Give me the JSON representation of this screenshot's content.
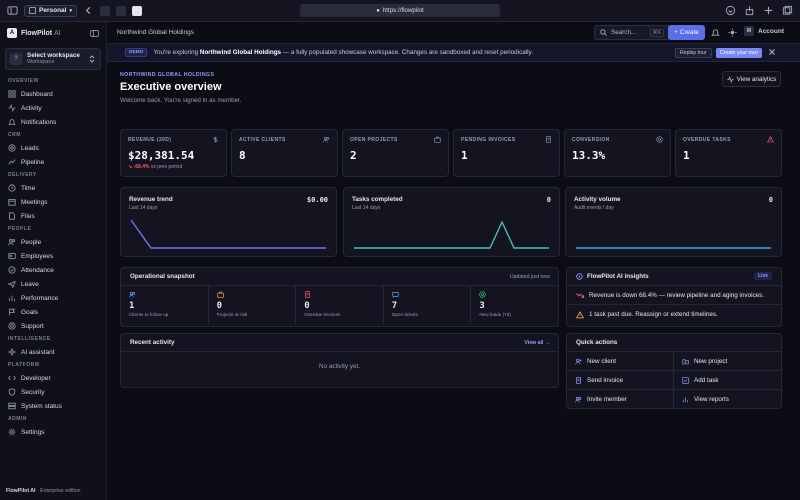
{
  "browser": {
    "profile": "Personal",
    "url": "https://flowpilot"
  },
  "brand": {
    "name": "FlowPilot",
    "suffix": "AI",
    "logo_letter": "A"
  },
  "workspace": {
    "title": "Select workspace",
    "subtitle": "Workspace",
    "initial": "?"
  },
  "sidebar": {
    "sections": [
      {
        "label": "OVERVIEW",
        "items": [
          {
            "label": "Dashboard",
            "icon": "grid-icon"
          },
          {
            "label": "Activity",
            "icon": "activity-icon"
          },
          {
            "label": "Notifications",
            "icon": "bell-icon"
          }
        ]
      },
      {
        "label": "CRM",
        "items": [
          {
            "label": "Leads",
            "icon": "target-icon"
          },
          {
            "label": "Pipeline",
            "icon": "pipeline-icon"
          }
        ]
      },
      {
        "label": "DELIVERY",
        "items": [
          {
            "label": "Time",
            "icon": "clock-icon"
          },
          {
            "label": "Meetings",
            "icon": "calendar-icon"
          },
          {
            "label": "Files",
            "icon": "file-icon"
          }
        ]
      },
      {
        "label": "PEOPLE",
        "items": [
          {
            "label": "People",
            "icon": "users-icon"
          },
          {
            "label": "Employees",
            "icon": "id-card-icon"
          },
          {
            "label": "Attendance",
            "icon": "check-circle-icon"
          },
          {
            "label": "Leave",
            "icon": "plane-icon"
          },
          {
            "label": "Performance",
            "icon": "chart-icon"
          },
          {
            "label": "Goals",
            "icon": "flag-icon"
          },
          {
            "label": "Support",
            "icon": "lifebuoy-icon"
          }
        ]
      },
      {
        "label": "INTELLIGENCE",
        "items": [
          {
            "label": "AI assistant",
            "icon": "sparkle-icon"
          }
        ]
      },
      {
        "label": "PLATFORM",
        "items": [
          {
            "label": "Developer",
            "icon": "code-icon"
          },
          {
            "label": "Security",
            "icon": "shield-icon"
          },
          {
            "label": "System status",
            "icon": "server-icon"
          }
        ]
      },
      {
        "label": "ADMIN",
        "items": [
          {
            "label": "Settings",
            "icon": "gear-icon"
          }
        ]
      }
    ],
    "footer_brand": "FlowPilot AI",
    "footer_edition": " · Enterprise edition"
  },
  "topbar": {
    "breadcrumb": "Northwind Global Holdings",
    "search_placeholder": "Search...",
    "search_shortcut": "⌘K",
    "create_label": "Create",
    "account_label": "Account",
    "account_initial": "M"
  },
  "demo_banner": {
    "badge": "DEMO",
    "text_before": "You're exploring ",
    "org": "Northwind Global Holdings",
    "text_after": " — a fully populated showcase workspace. Changes are sandboxed and reset periodically.",
    "replay_label": "Replay tour",
    "create_own_label": "Create your own"
  },
  "header": {
    "eyebrow": "NORTHWIND GLOBAL HOLDINGS",
    "title": "Executive overview",
    "subtitle": "Welcome back. You're signed in as member.",
    "view_analytics_label": "View analytics"
  },
  "kpis": [
    {
      "label": "REVENUE (30D)",
      "value": "$28,381.54",
      "delta": "-68.4%",
      "delta_note": " vs prev period",
      "icon": "dollar-icon"
    },
    {
      "label": "ACTIVE CLIENTS",
      "value": "8",
      "icon": "users-icon"
    },
    {
      "label": "OPEN PROJECTS",
      "value": "2",
      "icon": "briefcase-icon"
    },
    {
      "label": "PENDING INVOICES",
      "value": "1",
      "icon": "invoice-icon"
    },
    {
      "label": "CONVERSION",
      "value": "13.3%",
      "icon": "target-icon"
    },
    {
      "label": "OVERDUE TASKS",
      "value": "1",
      "icon": "warning-icon"
    }
  ],
  "minis": [
    {
      "title": "Revenue trend",
      "subtitle": "Last 14 days",
      "value": "$0.00",
      "color": "#7b6ff0"
    },
    {
      "title": "Tasks completed",
      "subtitle": "Last 14 days",
      "value": "0",
      "color": "#3fc3b0"
    },
    {
      "title": "Activity volume",
      "subtitle": "Audit events / day",
      "value": "0",
      "color": "#3aa3e8"
    }
  ],
  "snapshot": {
    "title": "Operational snapshot",
    "updated": "Updated just now",
    "cells": [
      {
        "value": "1",
        "caption": "Clients to follow up",
        "icon": "users-icon",
        "color": "#5aa7ff"
      },
      {
        "value": "0",
        "caption": "Projects at risk",
        "icon": "briefcase-icon",
        "color": "#e8a94a"
      },
      {
        "value": "0",
        "caption": "Overdue invoices",
        "icon": "invoice-icon",
        "color": "#ef5a67"
      },
      {
        "value": "7",
        "caption": "Open tickets",
        "icon": "ticket-icon",
        "color": "#5aa7ff"
      },
      {
        "value": "3",
        "caption": "New leads (7d)",
        "icon": "target-icon",
        "color": "#3fc37a"
      }
    ]
  },
  "insights": {
    "title": "FlowPilot AI insights",
    "badge": "Live",
    "items": [
      {
        "text": "Revenue is down 68.4% — review pipeline and aging invoices.",
        "icon": "trend-down-icon",
        "color": "#ef5a67"
      },
      {
        "text": "1 task past due. Reassign or extend timelines.",
        "icon": "warning-icon",
        "color": "#e8a94a"
      }
    ]
  },
  "recent": {
    "title": "Recent activity",
    "link": "View all",
    "empty": "No activity yet."
  },
  "quick": {
    "title": "Quick actions",
    "items": [
      {
        "label": "New client",
        "icon": "user-plus-icon"
      },
      {
        "label": "New project",
        "icon": "folder-plus-icon"
      },
      {
        "label": "Send invoice",
        "icon": "invoice-icon"
      },
      {
        "label": "Add task",
        "icon": "check-square-icon"
      },
      {
        "label": "Invite member",
        "icon": "users-icon"
      },
      {
        "label": "View reports",
        "icon": "chart-icon"
      }
    ]
  }
}
